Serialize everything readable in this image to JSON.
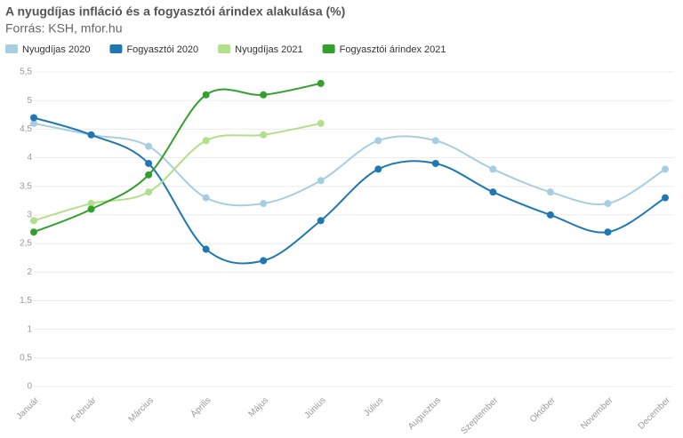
{
  "chart_data": {
    "type": "line",
    "title": "A nyugdíjas infláció és a fogyasztói árindex alakulása (%)",
    "subtitle": "Forrás: KSH, mfor.hu",
    "categories": [
      "Január",
      "Február",
      "Március",
      "Április",
      "Május",
      "Június",
      "Július",
      "Augusztus",
      "Szeptember",
      "Október",
      "November",
      "December"
    ],
    "series": [
      {
        "name": "Nyugdíjas 2020",
        "color": "#a6cee3",
        "values": [
          4.6,
          4.4,
          4.2,
          3.3,
          3.2,
          3.6,
          4.3,
          4.3,
          3.8,
          3.4,
          3.2,
          3.8
        ]
      },
      {
        "name": "Fogyasztói 2020",
        "color": "#1f78b4",
        "values": [
          4.7,
          4.4,
          3.9,
          2.4,
          2.2,
          2.9,
          3.8,
          3.9,
          3.4,
          3.0,
          2.7,
          3.3
        ]
      },
      {
        "name": "Nyugdíjas 2021",
        "color": "#b2df8a",
        "values": [
          2.9,
          3.2,
          3.4,
          4.3,
          4.4,
          4.6,
          null,
          null,
          null,
          null,
          null,
          null
        ]
      },
      {
        "name": "Fogyasztói árindex 2021",
        "color": "#33a02c",
        "values": [
          2.7,
          3.1,
          3.7,
          5.1,
          5.1,
          5.3,
          null,
          null,
          null,
          null,
          null,
          null
        ]
      }
    ],
    "ylim": [
      0,
      5.5
    ],
    "yticks": [
      0,
      {
        "value": 0.5,
        "label": "0,5"
      },
      1,
      {
        "value": 1.5,
        "label": "1,5"
      },
      2,
      {
        "value": 2.5,
        "label": "2,5"
      },
      3,
      {
        "value": 3.5,
        "label": "3,5"
      },
      4,
      {
        "value": 4.5,
        "label": "4,5"
      },
      5,
      {
        "value": 5.5,
        "label": "5,5"
      }
    ],
    "grid": true,
    "legend": "top-left"
  }
}
